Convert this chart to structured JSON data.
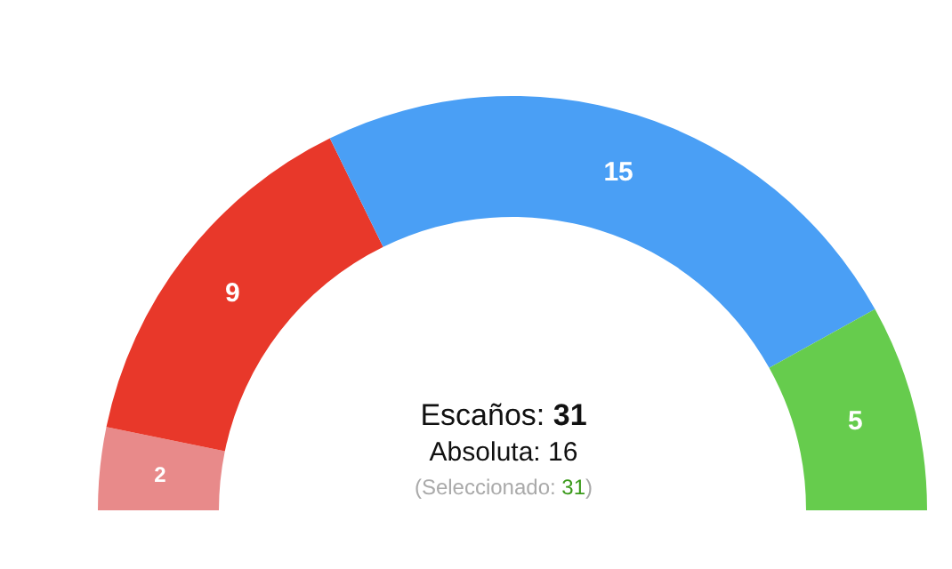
{
  "chart_data": {
    "type": "donut",
    "categories": [
      null,
      null,
      null,
      null
    ],
    "values": [
      2,
      9,
      15,
      5
    ],
    "colors": [
      "#e88a8a",
      "#e8382a",
      "#4a9ff5",
      "#66cc4d"
    ],
    "data_labels": true,
    "annotations": [
      "Escaños: 31",
      "Absoluta: 16",
      "(Seleccionado: 31)"
    ]
  }
}
